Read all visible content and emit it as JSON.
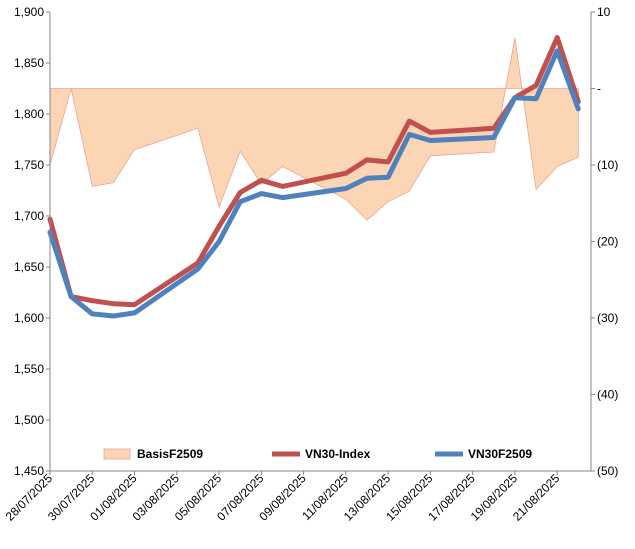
{
  "chart_data": {
    "type": "line",
    "title": "",
    "xlabel": "",
    "ylabel_left": "",
    "ylabel_right": "",
    "y_left_lim": [
      1450,
      1900
    ],
    "y_right_lim": [
      -50,
      10
    ],
    "grid": false,
    "legend_position": "bottom-inside",
    "x_tick_labels": [
      "28/07/2025",
      "30/07/2025",
      "01/08/2025",
      "03/08/2025",
      "05/08/2025",
      "07/08/2025",
      "09/08/2025",
      "11/08/2025",
      "13/08/2025",
      "15/08/2025",
      "17/08/2025",
      "19/08/2025",
      "21/08/2025"
    ],
    "y_left_ticks": [
      "1,450",
      "1,500",
      "1,550",
      "1,600",
      "1,650",
      "1,700",
      "1,750",
      "1,800",
      "1,850",
      "1,900"
    ],
    "y_right_ticks": [
      "(50)",
      "(40)",
      "(30)",
      "(20)",
      "(10)",
      "-",
      "10"
    ],
    "x": [
      "28/07/2025",
      "29/07/2025",
      "30/07/2025",
      "31/07/2025",
      "01/08/2025",
      "04/08/2025",
      "05/08/2025",
      "06/08/2025",
      "07/08/2025",
      "08/08/2025",
      "11/08/2025",
      "12/08/2025",
      "13/08/2025",
      "14/08/2025",
      "15/08/2025",
      "18/08/2025",
      "19/08/2025",
      "20/08/2025",
      "21/08/2025",
      "22/08/2025"
    ],
    "x_pos": [
      0,
      1,
      2,
      3,
      4,
      7,
      8,
      9,
      10,
      11,
      14,
      15,
      16,
      17,
      18,
      21,
      22,
      23,
      24,
      25
    ],
    "series": [
      {
        "name": "BasisF2509",
        "type": "area",
        "axis": "right",
        "color": "#fcd5b5",
        "edge_color": "#e8a596",
        "values": [
          -10,
          0,
          -12.8,
          -12.3,
          -8,
          -5.2,
          -15.5,
          -8.2,
          -12.5,
          -10.2,
          -14.5,
          -17.2,
          -14.8,
          -13.4,
          -8.8,
          -8.3,
          6.6,
          -13.2,
          -10.2,
          -9
        ]
      },
      {
        "name": "VN30-Index",
        "type": "line",
        "axis": "left",
        "color": "#c0504d",
        "values": [
          1697,
          1621,
          1617,
          1614,
          1613,
          1654,
          1690,
          1723,
          1735,
          1729,
          1742,
          1755,
          1753,
          1793,
          1782,
          1786,
          1816,
          1828,
          1875,
          1812
        ]
      },
      {
        "name": "VN30F2509",
        "type": "line",
        "axis": "left",
        "color": "#4f81bd",
        "values": [
          1684,
          1621,
          1604,
          1602,
          1605,
          1648,
          1675,
          1714,
          1722,
          1718,
          1727,
          1737,
          1738,
          1780,
          1774,
          1777,
          1816,
          1815,
          1862,
          1805
        ]
      }
    ]
  }
}
